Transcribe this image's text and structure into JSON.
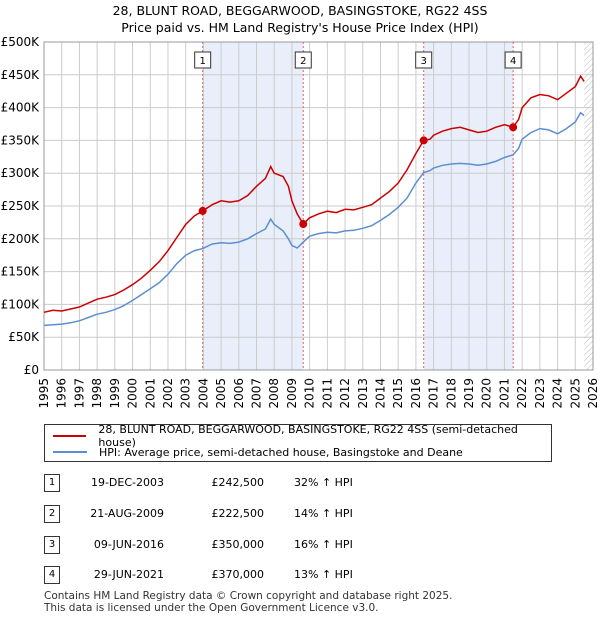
{
  "title": {
    "line1": "28, BLUNT ROAD, BEGGARWOOD, BASINGSTOKE, RG22 4SS",
    "line2": "Price paid vs. HM Land Registry's House Price Index (HPI)"
  },
  "legend": {
    "property_label": "28, BLUNT ROAD, BEGGARWOOD, BASINGSTOKE, RG22 4SS (semi-detached house)",
    "hpi_label": "HPI: Average price, semi-detached house, Basingstoke and Deane"
  },
  "transactions": [
    {
      "num": "1",
      "date": "19-DEC-2003",
      "price": "£242,500",
      "hpi": "32% ↑ HPI"
    },
    {
      "num": "2",
      "date": "21-AUG-2009",
      "price": "£222,500",
      "hpi": "14% ↑ HPI"
    },
    {
      "num": "3",
      "date": "09-JUN-2016",
      "price": "£350,000",
      "hpi": "16% ↑ HPI"
    },
    {
      "num": "4",
      "date": "29-JUN-2021",
      "price": "£370,000",
      "hpi": "13% ↑ HPI"
    }
  ],
  "footer": {
    "line1": "Contains HM Land Registry data © Crown copyright and database right 2025.",
    "line2": "This data is licensed under the Open Government Licence v3.0."
  },
  "colors": {
    "property": "#cc0000",
    "hpi": "#5b8fd0",
    "band": "#e8eefa",
    "vline": "#e06666",
    "grid": "#cccccc"
  },
  "chart_data": {
    "type": "line",
    "xlim": [
      1995,
      2026
    ],
    "ylim": [
      0,
      500000
    ],
    "x_ticks": [
      "1995",
      "1996",
      "1997",
      "1998",
      "1999",
      "2000",
      "2001",
      "2002",
      "2003",
      "2004",
      "2005",
      "2006",
      "2007",
      "2008",
      "2009",
      "2010",
      "2011",
      "2012",
      "2013",
      "2014",
      "2015",
      "2016",
      "2017",
      "2018",
      "2019",
      "2020",
      "2021",
      "2022",
      "2023",
      "2024",
      "2025",
      "2026"
    ],
    "y_ticks": [
      {
        "value": 0,
        "label": "£0"
      },
      {
        "value": 50000,
        "label": "£50K"
      },
      {
        "value": 100000,
        "label": "£100K"
      },
      {
        "value": 150000,
        "label": "£150K"
      },
      {
        "value": 200000,
        "label": "£200K"
      },
      {
        "value": 250000,
        "label": "£250K"
      },
      {
        "value": 300000,
        "label": "£300K"
      },
      {
        "value": 350000,
        "label": "£350K"
      },
      {
        "value": 400000,
        "label": "£400K"
      },
      {
        "value": 450000,
        "label": "£450K"
      },
      {
        "value": 500000,
        "label": "£500K"
      }
    ],
    "series": [
      {
        "name": "28, BLUNT ROAD, BEGGARWOOD, BASINGSTOKE, RG22 4SS (semi-detached house)",
        "points": [
          [
            1995,
            88000
          ],
          [
            1995.5,
            91000
          ],
          [
            1996,
            90000
          ],
          [
            1996.5,
            93000
          ],
          [
            1997,
            96000
          ],
          [
            1997.5,
            102000
          ],
          [
            1998,
            108000
          ],
          [
            1998.5,
            111000
          ],
          [
            1999,
            115000
          ],
          [
            1999.5,
            122000
          ],
          [
            2000,
            130000
          ],
          [
            2000.5,
            140000
          ],
          [
            2001,
            152000
          ],
          [
            2001.5,
            165000
          ],
          [
            2002,
            182000
          ],
          [
            2002.5,
            202000
          ],
          [
            2003,
            222000
          ],
          [
            2003.5,
            235000
          ],
          [
            2003.96,
            242500
          ],
          [
            2004.5,
            252000
          ],
          [
            2005,
            258000
          ],
          [
            2005.5,
            256000
          ],
          [
            2006,
            258000
          ],
          [
            2006.5,
            266000
          ],
          [
            2007,
            280000
          ],
          [
            2007.5,
            292000
          ],
          [
            2007.8,
            310000
          ],
          [
            2008,
            300000
          ],
          [
            2008.5,
            295000
          ],
          [
            2008.8,
            280000
          ],
          [
            2009,
            258000
          ],
          [
            2009.3,
            238000
          ],
          [
            2009.64,
            222500
          ],
          [
            2010,
            232000
          ],
          [
            2010.5,
            238000
          ],
          [
            2011,
            242000
          ],
          [
            2011.5,
            240000
          ],
          [
            2012,
            245000
          ],
          [
            2012.5,
            244000
          ],
          [
            2013,
            248000
          ],
          [
            2013.5,
            252000
          ],
          [
            2014,
            262000
          ],
          [
            2014.5,
            272000
          ],
          [
            2015,
            285000
          ],
          [
            2015.5,
            305000
          ],
          [
            2016,
            330000
          ],
          [
            2016.44,
            350000
          ],
          [
            2016.8,
            352000
          ],
          [
            2017,
            358000
          ],
          [
            2017.5,
            364000
          ],
          [
            2018,
            368000
          ],
          [
            2018.5,
            370000
          ],
          [
            2019,
            366000
          ],
          [
            2019.5,
            362000
          ],
          [
            2020,
            364000
          ],
          [
            2020.5,
            370000
          ],
          [
            2021,
            374000
          ],
          [
            2021.49,
            370000
          ],
          [
            2021.8,
            382000
          ],
          [
            2022,
            400000
          ],
          [
            2022.5,
            415000
          ],
          [
            2023,
            420000
          ],
          [
            2023.5,
            418000
          ],
          [
            2024,
            412000
          ],
          [
            2024.5,
            422000
          ],
          [
            2025,
            432000
          ],
          [
            2025.3,
            448000
          ],
          [
            2025.5,
            440000
          ]
        ]
      },
      {
        "name": "HPI: Average price, semi-detached house, Basingstoke and Deane",
        "points": [
          [
            1995,
            68000
          ],
          [
            1995.5,
            69000
          ],
          [
            1996,
            70000
          ],
          [
            1996.5,
            72000
          ],
          [
            1997,
            75000
          ],
          [
            1997.5,
            80000
          ],
          [
            1998,
            85000
          ],
          [
            1998.5,
            88000
          ],
          [
            1999,
            92000
          ],
          [
            1999.5,
            98000
          ],
          [
            2000,
            106000
          ],
          [
            2000.5,
            115000
          ],
          [
            2001,
            124000
          ],
          [
            2001.5,
            133000
          ],
          [
            2002,
            146000
          ],
          [
            2002.5,
            162000
          ],
          [
            2003,
            175000
          ],
          [
            2003.5,
            182000
          ],
          [
            2003.96,
            185000
          ],
          [
            2004.5,
            192000
          ],
          [
            2005,
            194000
          ],
          [
            2005.5,
            193000
          ],
          [
            2006,
            195000
          ],
          [
            2006.5,
            200000
          ],
          [
            2007,
            208000
          ],
          [
            2007.5,
            215000
          ],
          [
            2007.8,
            230000
          ],
          [
            2008,
            222000
          ],
          [
            2008.5,
            212000
          ],
          [
            2008.8,
            200000
          ],
          [
            2009,
            190000
          ],
          [
            2009.3,
            186000
          ],
          [
            2009.64,
            195000
          ],
          [
            2010,
            204000
          ],
          [
            2010.5,
            208000
          ],
          [
            2011,
            210000
          ],
          [
            2011.5,
            209000
          ],
          [
            2012,
            212000
          ],
          [
            2012.5,
            213000
          ],
          [
            2013,
            216000
          ],
          [
            2013.5,
            220000
          ],
          [
            2014,
            228000
          ],
          [
            2014.5,
            237000
          ],
          [
            2015,
            248000
          ],
          [
            2015.5,
            262000
          ],
          [
            2016,
            285000
          ],
          [
            2016.44,
            301000
          ],
          [
            2016.8,
            304000
          ],
          [
            2017,
            308000
          ],
          [
            2017.5,
            312000
          ],
          [
            2018,
            314000
          ],
          [
            2018.5,
            315000
          ],
          [
            2019,
            314000
          ],
          [
            2019.5,
            312000
          ],
          [
            2020,
            314000
          ],
          [
            2020.5,
            318000
          ],
          [
            2021,
            324000
          ],
          [
            2021.49,
            328000
          ],
          [
            2021.8,
            338000
          ],
          [
            2022,
            352000
          ],
          [
            2022.5,
            362000
          ],
          [
            2023,
            368000
          ],
          [
            2023.5,
            366000
          ],
          [
            2024,
            360000
          ],
          [
            2024.5,
            368000
          ],
          [
            2025,
            378000
          ],
          [
            2025.3,
            392000
          ],
          [
            2025.5,
            388000
          ]
        ]
      }
    ],
    "sales": [
      {
        "num": "1",
        "x": 2003.96,
        "y": 242500
      },
      {
        "num": "2",
        "x": 2009.64,
        "y": 222500
      },
      {
        "num": "3",
        "x": 2016.44,
        "y": 350000
      },
      {
        "num": "4",
        "x": 2021.49,
        "y": 370000
      }
    ],
    "hatched_from": 2025.5
  }
}
